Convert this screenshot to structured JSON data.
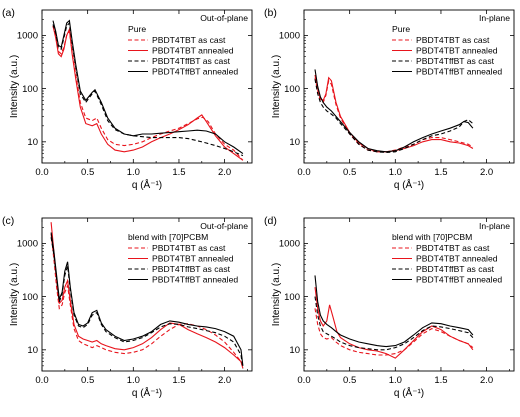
{
  "figure": {
    "series_styles": {
      "PBDT4TBT as cast": {
        "color": "#e8141c",
        "dash": true
      },
      "PBDT4TBT annealed": {
        "color": "#e8141c",
        "dash": false
      },
      "PBDT4TffBT as cast": {
        "color": "#000000",
        "dash": true
      },
      "PBDT4TffBT annealed": {
        "color": "#000000",
        "dash": false
      }
    }
  },
  "chart_data": [
    {
      "panel": "(a)",
      "type": "line",
      "corner_label": "Out-of-plane",
      "legend_title": "Pure",
      "legend_placement": "top-right",
      "xlabel": "q (Å⁻¹)",
      "ylabel": "Intensity (a.u.)",
      "xlim": [
        0,
        2.3
      ],
      "ylim": [
        4,
        3000
      ],
      "y_scale": "log",
      "xticks": [
        "0.0",
        "0.5",
        "1.0",
        "1.5",
        "2.0"
      ],
      "yticks": [
        "10",
        "100",
        "1000"
      ],
      "series": [
        {
          "name": "PBDT4TBT as cast",
          "x": [
            0.12,
            0.15,
            0.18,
            0.21,
            0.24,
            0.27,
            0.3,
            0.33,
            0.37,
            0.42,
            0.48,
            0.55,
            0.6,
            0.65,
            0.72,
            0.8,
            0.9,
            1.0,
            1.1,
            1.2,
            1.3,
            1.4,
            1.5,
            1.6,
            1.7,
            1.76,
            1.82,
            1.9,
            2.0,
            2.1,
            2.2
          ],
          "y": [
            1500,
            1000,
            500,
            450,
            600,
            1000,
            1200,
            500,
            180,
            55,
            28,
            25,
            28,
            18,
            11,
            9,
            8.5,
            9,
            10,
            12,
            14,
            16,
            18,
            22,
            27,
            29,
            24,
            14,
            9,
            7,
            4.5
          ]
        },
        {
          "name": "PBDT4TBT annealed",
          "x": [
            0.12,
            0.15,
            0.18,
            0.21,
            0.24,
            0.27,
            0.3,
            0.33,
            0.37,
            0.42,
            0.48,
            0.55,
            0.6,
            0.65,
            0.72,
            0.8,
            0.9,
            1.0,
            1.1,
            1.2,
            1.3,
            1.4,
            1.5,
            1.6,
            1.7,
            1.75,
            1.8,
            1.9,
            2.0,
            2.1,
            2.2
          ],
          "y": [
            1500,
            900,
            450,
            400,
            550,
            1000,
            1300,
            450,
            150,
            45,
            22,
            20,
            22,
            14,
            9,
            7,
            6.5,
            7,
            8,
            10,
            12,
            14,
            17,
            21,
            28,
            32,
            24,
            13,
            8,
            6,
            4.5
          ]
        },
        {
          "name": "PBDT4TffBT as cast",
          "x": [
            0.12,
            0.15,
            0.18,
            0.21,
            0.24,
            0.27,
            0.3,
            0.33,
            0.37,
            0.42,
            0.48,
            0.55,
            0.58,
            0.65,
            0.72,
            0.8,
            0.9,
            1.0,
            1.1,
            1.2,
            1.3,
            1.4,
            1.5,
            1.6,
            1.7,
            1.8,
            1.9,
            2.0,
            2.1,
            2.2
          ],
          "y": [
            1600,
            1100,
            600,
            550,
            900,
            1500,
            1700,
            700,
            250,
            80,
            55,
            80,
            90,
            50,
            25,
            17,
            14,
            13,
            12.5,
            12,
            12,
            12,
            12,
            11.5,
            10.5,
            9.5,
            8.5,
            7.5,
            6.5,
            5.5
          ]
        },
        {
          "name": "PBDT4TffBT annealed",
          "x": [
            0.12,
            0.15,
            0.18,
            0.21,
            0.24,
            0.27,
            0.3,
            0.33,
            0.37,
            0.42,
            0.48,
            0.55,
            0.58,
            0.65,
            0.72,
            0.8,
            0.9,
            1.0,
            1.1,
            1.2,
            1.3,
            1.4,
            1.5,
            1.6,
            1.7,
            1.8,
            1.9,
            2.0,
            2.1,
            2.2
          ],
          "y": [
            1900,
            1200,
            650,
            600,
            1000,
            1700,
            1900,
            800,
            280,
            90,
            60,
            85,
            95,
            55,
            28,
            18,
            14,
            13,
            14,
            14,
            14.5,
            15,
            15.5,
            16,
            16.5,
            16,
            14,
            10,
            8,
            6
          ]
        }
      ]
    },
    {
      "panel": "(b)",
      "type": "line",
      "corner_label": "In-plane",
      "legend_title": "Pure",
      "legend_placement": "top-right",
      "xlabel": "q (Å⁻¹)",
      "ylabel": "Intensity (a.u.)",
      "xlim": [
        0,
        2.3
      ],
      "ylim": [
        4,
        3000
      ],
      "y_scale": "log",
      "xticks": [
        "0.0",
        "0.5",
        "1.0",
        "1.5",
        "2.0"
      ],
      "yticks": [
        "10",
        "100",
        "1000"
      ],
      "series": [
        {
          "name": "PBDT4TBT as cast",
          "x": [
            0.12,
            0.15,
            0.18,
            0.21,
            0.24,
            0.27,
            0.3,
            0.35,
            0.4,
            0.5,
            0.6,
            0.7,
            0.8,
            0.9,
            1.0,
            1.1,
            1.2,
            1.3,
            1.4,
            1.5,
            1.6,
            1.7,
            1.8,
            1.85
          ],
          "y": [
            160,
            90,
            60,
            55,
            75,
            140,
            120,
            50,
            28,
            14,
            9,
            7,
            6.5,
            6.5,
            7,
            8,
            9,
            11,
            12,
            12,
            11,
            10,
            9,
            8
          ]
        },
        {
          "name": "PBDT4TBT annealed",
          "x": [
            0.12,
            0.15,
            0.18,
            0.21,
            0.24,
            0.27,
            0.3,
            0.35,
            0.4,
            0.5,
            0.6,
            0.7,
            0.8,
            0.9,
            1.0,
            1.1,
            1.2,
            1.3,
            1.4,
            1.5,
            1.6,
            1.7,
            1.8,
            1.85
          ],
          "y": [
            180,
            100,
            65,
            60,
            80,
            160,
            140,
            55,
            30,
            15,
            9.5,
            7.5,
            6.5,
            6.5,
            6.8,
            7.5,
            8.5,
            10,
            11,
            11,
            10,
            9.5,
            8.5,
            7.5
          ]
        },
        {
          "name": "PBDT4TffBT as cast",
          "x": [
            0.12,
            0.15,
            0.18,
            0.21,
            0.25,
            0.3,
            0.35,
            0.4,
            0.5,
            0.6,
            0.7,
            0.8,
            0.9,
            1.0,
            1.1,
            1.2,
            1.3,
            1.4,
            1.5,
            1.6,
            1.7,
            1.75,
            1.8,
            1.85
          ],
          "y": [
            150,
            80,
            55,
            45,
            38,
            33,
            28,
            22,
            14,
            9,
            7,
            6.5,
            6.3,
            6.5,
            7.5,
            9,
            11,
            13,
            14,
            16,
            19,
            24,
            26,
            22
          ]
        },
        {
          "name": "PBDT4TffBT annealed",
          "x": [
            0.12,
            0.15,
            0.18,
            0.21,
            0.25,
            0.3,
            0.35,
            0.4,
            0.5,
            0.6,
            0.7,
            0.8,
            0.9,
            1.0,
            1.1,
            1.2,
            1.3,
            1.4,
            1.5,
            1.6,
            1.7,
            1.75,
            1.8,
            1.85
          ],
          "y": [
            230,
            110,
            70,
            55,
            45,
            38,
            30,
            24,
            15,
            10,
            7.5,
            6.8,
            6.5,
            6.8,
            8,
            10,
            12,
            14,
            16,
            18,
            21,
            24,
            23,
            18
          ]
        }
      ]
    },
    {
      "panel": "(c)",
      "type": "line",
      "corner_label": "Out-of-plane",
      "legend_title": "blend with [70]PCBM",
      "legend_placement": "top-right",
      "xlabel": "q (Å⁻¹)",
      "ylabel": "Intensity (a.u.)",
      "xlim": [
        0,
        2.3
      ],
      "ylim": [
        4,
        3000
      ],
      "y_scale": "log",
      "xticks": [
        "0.0",
        "0.5",
        "1.0",
        "1.5",
        "2.0"
      ],
      "yticks": [
        "10",
        "100",
        "1000"
      ],
      "series": [
        {
          "name": "PBDT4TBT as cast",
          "x": [
            0.1,
            0.13,
            0.16,
            0.19,
            0.22,
            0.25,
            0.28,
            0.31,
            0.35,
            0.4,
            0.45,
            0.5,
            0.55,
            0.6,
            0.65,
            0.7,
            0.8,
            0.9,
            1.0,
            1.1,
            1.2,
            1.3,
            1.4,
            1.5,
            1.6,
            1.7,
            1.8,
            1.9,
            2.0,
            2.1,
            2.18,
            2.2
          ],
          "y": [
            1500,
            500,
            150,
            60,
            70,
            120,
            160,
            70,
            25,
            15,
            13,
            12,
            11,
            12,
            11,
            10,
            9,
            8.5,
            9,
            10,
            13,
            18,
            24,
            30,
            31,
            28,
            24,
            19,
            14,
            9,
            6,
            4.5
          ]
        },
        {
          "name": "PBDT4TBT annealed",
          "x": [
            0.1,
            0.13,
            0.16,
            0.19,
            0.22,
            0.25,
            0.28,
            0.31,
            0.35,
            0.4,
            0.45,
            0.5,
            0.55,
            0.6,
            0.65,
            0.7,
            0.8,
            0.9,
            1.0,
            1.1,
            1.2,
            1.3,
            1.4,
            1.5,
            1.6,
            1.7,
            1.8,
            1.9,
            2.0,
            2.1,
            2.18,
            2.2
          ],
          "y": [
            2500,
            700,
            200,
            75,
            85,
            150,
            200,
            85,
            30,
            18,
            16,
            15,
            14,
            15,
            13,
            12,
            10.5,
            10,
            11,
            13,
            17,
            24,
            32,
            30,
            24,
            20,
            17,
            14,
            11,
            8,
            6,
            4.5
          ]
        },
        {
          "name": "PBDT4TffBT as cast",
          "x": [
            0.1,
            0.13,
            0.16,
            0.19,
            0.22,
            0.25,
            0.28,
            0.31,
            0.35,
            0.4,
            0.45,
            0.5,
            0.55,
            0.6,
            0.65,
            0.7,
            0.8,
            0.9,
            1.0,
            1.1,
            1.2,
            1.3,
            1.4,
            1.5,
            1.6,
            1.7,
            1.8,
            1.9,
            2.0,
            2.1,
            2.18,
            2.2
          ],
          "y": [
            1300,
            600,
            220,
            80,
            110,
            250,
            380,
            130,
            45,
            28,
            26,
            30,
            45,
            50,
            30,
            22,
            17,
            14,
            15,
            17,
            21,
            27,
            31,
            30,
            27,
            25,
            23,
            21,
            18,
            14,
            8,
            4.5
          ]
        },
        {
          "name": "PBDT4TffBT annealed",
          "x": [
            0.1,
            0.13,
            0.16,
            0.19,
            0.22,
            0.25,
            0.28,
            0.31,
            0.35,
            0.4,
            0.45,
            0.5,
            0.55,
            0.6,
            0.65,
            0.7,
            0.8,
            0.9,
            1.0,
            1.1,
            1.2,
            1.3,
            1.4,
            1.5,
            1.6,
            1.7,
            1.8,
            1.9,
            2.0,
            2.1,
            2.18,
            2.2
          ],
          "y": [
            1600,
            700,
            250,
            90,
            120,
            300,
            450,
            150,
            50,
            30,
            28,
            32,
            50,
            55,
            32,
            24,
            18,
            15,
            16,
            18,
            22,
            30,
            35,
            33,
            30,
            28,
            27,
            25,
            22,
            18,
            10,
            5
          ]
        }
      ]
    },
    {
      "panel": "(d)",
      "type": "line",
      "corner_label": "In-plane",
      "legend_title": "blend with [70]PCBM",
      "legend_placement": "top-right",
      "xlabel": "q (Å⁻¹)",
      "ylabel": "Intensity (a.u.)",
      "xlim": [
        0,
        2.3
      ],
      "ylim": [
        4,
        3000
      ],
      "y_scale": "log",
      "xticks": [
        "0.0",
        "0.5",
        "1.0",
        "1.5",
        "2.0"
      ],
      "yticks": [
        "10",
        "100",
        "1000"
      ],
      "series": [
        {
          "name": "PBDT4TBT as cast",
          "x": [
            0.12,
            0.15,
            0.18,
            0.21,
            0.25,
            0.3,
            0.35,
            0.4,
            0.5,
            0.6,
            0.7,
            0.8,
            0.9,
            1.0,
            1.1,
            1.2,
            1.3,
            1.4,
            1.5,
            1.6,
            1.7,
            1.8,
            1.85
          ],
          "y": [
            60,
            30,
            20,
            17,
            16,
            17,
            14,
            12,
            10,
            9,
            8.5,
            8,
            8,
            8.5,
            10,
            14,
            20,
            25,
            22,
            18,
            15,
            13,
            11
          ]
        },
        {
          "name": "PBDT4TBT annealed",
          "x": [
            0.12,
            0.15,
            0.18,
            0.21,
            0.25,
            0.28,
            0.32,
            0.36,
            0.4,
            0.5,
            0.6,
            0.7,
            0.8,
            0.9,
            1.0,
            1.1,
            1.2,
            1.3,
            1.4,
            1.5,
            1.6,
            1.7,
            1.8,
            1.85
          ],
          "y": [
            150,
            60,
            35,
            28,
            35,
            70,
            40,
            22,
            17,
            13,
            11,
            10,
            9.5,
            8.5,
            7,
            10,
            15,
            22,
            28,
            24,
            18,
            15,
            13,
            10
          ]
        },
        {
          "name": "PBDT4TffBT as cast",
          "x": [
            0.12,
            0.15,
            0.18,
            0.21,
            0.25,
            0.3,
            0.35,
            0.4,
            0.5,
            0.6,
            0.7,
            0.8,
            0.9,
            1.0,
            1.1,
            1.2,
            1.3,
            1.4,
            1.5,
            1.6,
            1.7,
            1.8,
            1.85
          ],
          "y": [
            100,
            45,
            28,
            22,
            20,
            18,
            16,
            14,
            12,
            11,
            10.5,
            10,
            10,
            11,
            13,
            17,
            23,
            28,
            27,
            25,
            23,
            21,
            17
          ]
        },
        {
          "name": "PBDT4TffBT annealed",
          "x": [
            0.12,
            0.15,
            0.18,
            0.21,
            0.25,
            0.3,
            0.35,
            0.4,
            0.5,
            0.6,
            0.7,
            0.8,
            0.9,
            1.0,
            1.1,
            1.2,
            1.3,
            1.4,
            1.5,
            1.6,
            1.7,
            1.8,
            1.85
          ],
          "y": [
            250,
            80,
            45,
            35,
            30,
            26,
            22,
            19,
            16,
            14,
            13,
            12,
            11.5,
            12,
            14,
            19,
            26,
            32,
            31,
            28,
            26,
            24,
            19
          ]
        }
      ]
    }
  ]
}
